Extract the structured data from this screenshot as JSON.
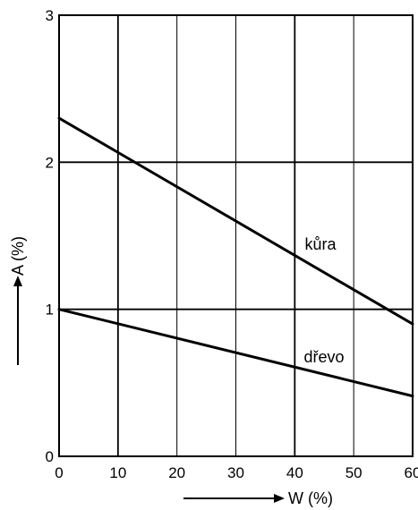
{
  "chart_data": {
    "type": "line",
    "xlabel": "W (%)",
    "ylabel": "A (%)",
    "xlim": [
      0,
      60
    ],
    "ylim": [
      0,
      3
    ],
    "xticks": [
      "0",
      "10",
      "20",
      "30",
      "40",
      "50",
      "60"
    ],
    "yticks": [
      "0",
      "1",
      "2",
      "3"
    ],
    "grid": true,
    "series": [
      {
        "name": "kůra",
        "x": [
          0,
          60
        ],
        "y": [
          2.3,
          0.9
        ]
      },
      {
        "name": "dřevo",
        "x": [
          0,
          60
        ],
        "y": [
          1.0,
          0.41
        ]
      }
    ]
  }
}
